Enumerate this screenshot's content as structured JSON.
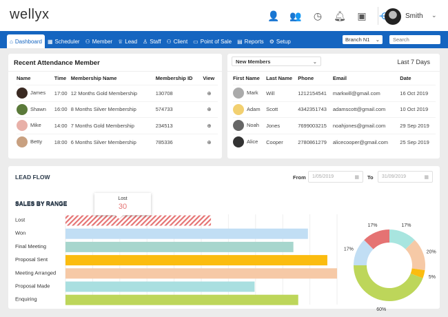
{
  "header": {
    "logo": "wellyx",
    "user_name": "Smith",
    "icons": [
      "user-check-icon",
      "user-clock-icon",
      "clock-icon",
      "bell-icon",
      "calendar-check-icon",
      "share-icon"
    ]
  },
  "nav": {
    "items": [
      {
        "label": "Dashboard",
        "icon": "home-icon",
        "active": true
      },
      {
        "label": "Scheduler",
        "icon": "calendar-icon"
      },
      {
        "label": "Member",
        "icon": "members-icon"
      },
      {
        "label": "Lead",
        "icon": "trophy-icon"
      },
      {
        "label": "Staff",
        "icon": "user-icon"
      },
      {
        "label": "Client",
        "icon": "users-icon"
      },
      {
        "label": "Point of Sale",
        "icon": "monitor-icon"
      },
      {
        "label": "Reports",
        "icon": "report-icon"
      },
      {
        "label": "Setup",
        "icon": "gears-icon"
      }
    ],
    "branch": "Branch N1",
    "search_placeholder": "Search"
  },
  "attendance": {
    "title": "Recent Attendance Member",
    "columns": [
      "Name",
      "Time",
      "Membership Name",
      "Membership ID",
      "View"
    ],
    "rows": [
      {
        "name": "James",
        "time": "17:00",
        "membership": "12 Months Gold Membership",
        "id": "130708"
      },
      {
        "name": "Shawn",
        "time": "16:00",
        "membership": "8 Months Silver Membership",
        "id": "574733"
      },
      {
        "name": "Mike",
        "time": "14:00",
        "membership": "7 Months Gold Membership",
        "id": "234513"
      },
      {
        "name": "Betty",
        "time": "18:00",
        "membership": "6 Months Silver Membership",
        "id": "785336"
      }
    ]
  },
  "new_members": {
    "filter": "New Members",
    "range": "Last 7 Days",
    "columns": [
      "First Name",
      "Last Name",
      "Phone",
      "Email",
      "Date"
    ],
    "rows": [
      {
        "first": "Mark",
        "last": "Will",
        "phone": "1212154541",
        "email": "markwill@gmail.com",
        "date": "16 Oct 2019"
      },
      {
        "first": "Adam",
        "last": "Scott",
        "phone": "4342351743",
        "email": "adamscott@gmail.com",
        "date": "10 Oct 2019"
      },
      {
        "first": "Noah",
        "last": "Jones",
        "phone": "7699003215",
        "email": "noahjones@gmail.com",
        "date": "29 Sep 2019"
      },
      {
        "first": "Alice",
        "last": "Cooper",
        "phone": "2780861279",
        "email": "alicecooper@gmail.com",
        "date": "25 Sep 2019"
      }
    ]
  },
  "lead_flow": {
    "title": "LEAD FLOW",
    "from_label": "From",
    "from_value": "1/05/2019",
    "to_label": "To",
    "to_value": "31/09/2019",
    "subtitle": "SALES BY RANGE",
    "tooltip": {
      "label": "Lost",
      "value": "30"
    }
  },
  "chart_data": [
    {
      "type": "bar",
      "orientation": "horizontal",
      "title": "SALES BY RANGE",
      "categories": [
        "Lost",
        "Won",
        "Final Meeting",
        "Proposal Sent",
        "Meeting Arranged",
        "Proposal Made",
        "Enquiring"
      ],
      "values": [
        30,
        50,
        47,
        54,
        56,
        39,
        48
      ],
      "xlim": [
        0,
        56
      ],
      "grid": true,
      "colors": [
        "#e57373",
        "#c1def4",
        "#a7d6cd",
        "#fbbc0f",
        "#f6c9a6",
        "#a9dfe0",
        "#bdd65a"
      ]
    },
    {
      "type": "pie",
      "donut": true,
      "labels": [
        "17%",
        "20%",
        "5%",
        "60%",
        "17%",
        "17%"
      ],
      "values": [
        17,
        20,
        5,
        60,
        17,
        17
      ],
      "colors": [
        "#a8e5df",
        "#f6c9a6",
        "#fbbc0f",
        "#bdd65a",
        "#c1def4",
        "#e57373"
      ]
    }
  ]
}
